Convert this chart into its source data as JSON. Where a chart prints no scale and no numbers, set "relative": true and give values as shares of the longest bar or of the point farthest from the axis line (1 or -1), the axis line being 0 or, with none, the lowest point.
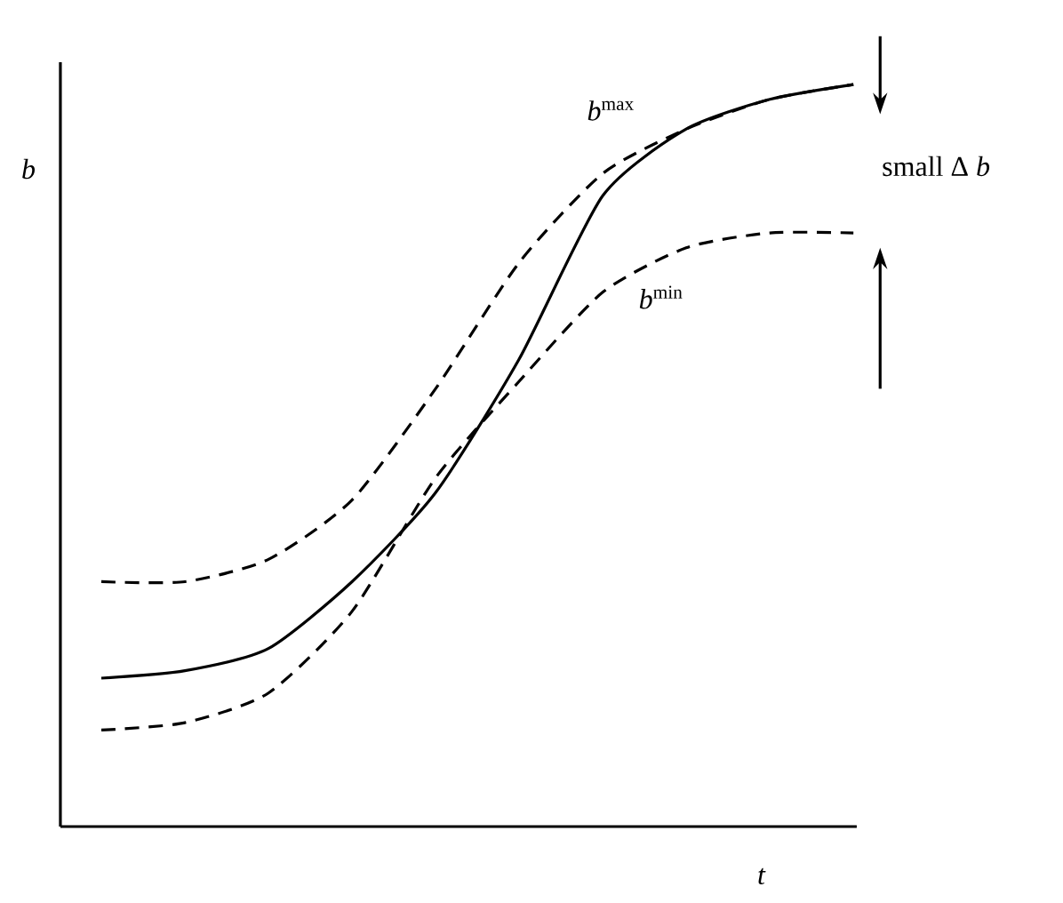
{
  "chart_data": {
    "type": "line",
    "relative": true,
    "xlabel": "*t*",
    "ylabel": "*b*",
    "categories": [
      null,
      null,
      null,
      null,
      null,
      null,
      null,
      null,
      null,
      null
    ],
    "series": [
      {
        "name": "*b*$^{max}$",
        "color": "#000000",
        "line_style": "dashed",
        "values": [
          0.33,
          0.33,
          0.36,
          0.44,
          0.59,
          0.76,
          0.88,
          0.94,
          0.98,
          1.0
        ]
      },
      {
        "color": "#000000",
        "line_style": "solid",
        "values": [
          0.2,
          0.21,
          0.24,
          0.33,
          0.45,
          0.63,
          0.85,
          0.94,
          0.98,
          1.0
        ]
      },
      {
        "name": "*b*$^{min}$",
        "color": "#000000",
        "line_style": "dashed",
        "values": [
          0.13,
          0.14,
          0.18,
          0.29,
          0.47,
          0.6,
          0.72,
          0.78,
          0.8,
          0.8
        ]
      }
    ],
    "annotations": [
      "small Δ *b*"
    ]
  }
}
